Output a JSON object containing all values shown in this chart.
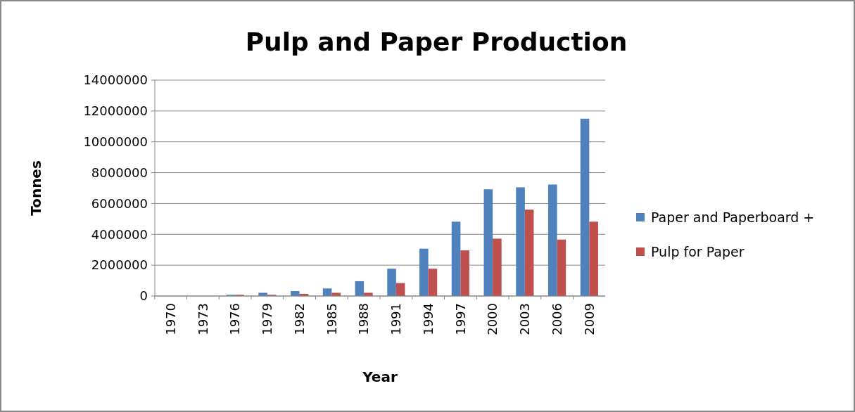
{
  "chart_data": {
    "type": "bar",
    "title": "Pulp and Paper Production",
    "xlabel": "Year",
    "ylabel": "Tonnes",
    "categories": [
      "1970",
      "1973",
      "1976",
      "1979",
      "1982",
      "1985",
      "1988",
      "1991",
      "1994",
      "1997",
      "2000",
      "2003",
      "2006",
      "2009"
    ],
    "series": [
      {
        "name": "Paper and Paperboard +",
        "color": "#4f81bd",
        "values": [
          0,
          0,
          80000,
          210000,
          320000,
          490000,
          960000,
          1770000,
          3070000,
          4820000,
          6920000,
          7050000,
          7230000,
          11500000
        ]
      },
      {
        "name": "Pulp for Paper",
        "color": "#c0504d",
        "values": [
          0,
          0,
          80000,
          80000,
          140000,
          210000,
          210000,
          840000,
          1770000,
          2960000,
          3720000,
          5600000,
          3660000,
          4820000
        ]
      }
    ],
    "ylim": [
      0,
      14000000
    ],
    "yticks": [
      0,
      2000000,
      4000000,
      6000000,
      8000000,
      10000000,
      12000000,
      14000000
    ],
    "grid": "y",
    "legend": "right"
  }
}
